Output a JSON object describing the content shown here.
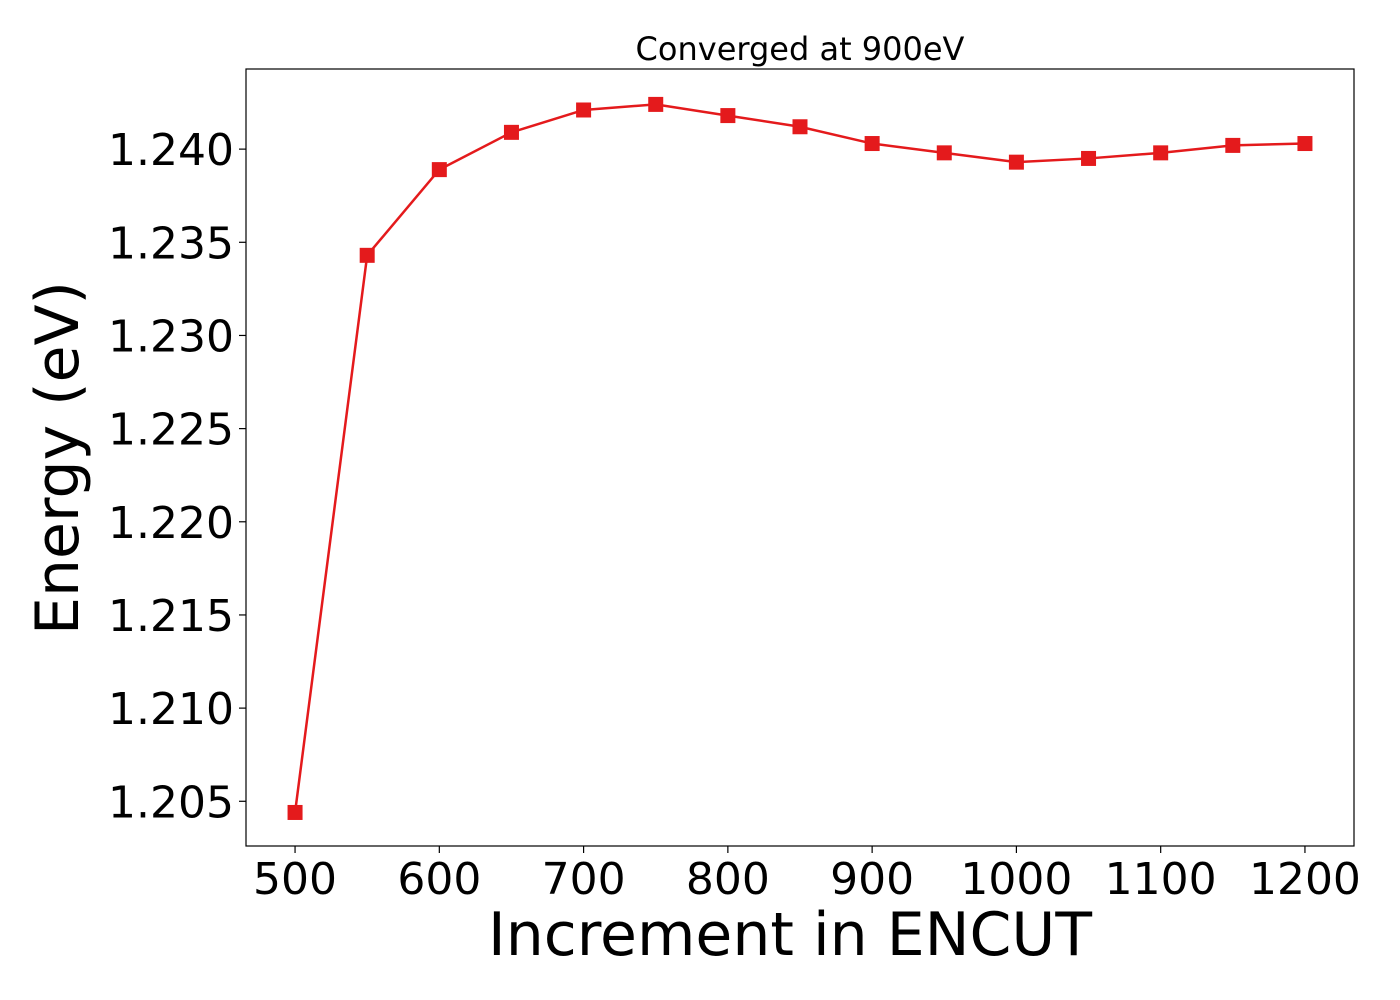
{
  "chart_data": {
    "type": "line",
    "title": "Converged at 900eV",
    "xlabel": "Increment in ENCUT",
    "ylabel": "Energy (eV)",
    "xlim": [
      466,
      1234
    ],
    "ylim": [
      1.2026,
      1.2443
    ],
    "x_ticks": [
      500,
      600,
      700,
      800,
      900,
      1000,
      1100,
      1200
    ],
    "y_ticks": [
      1.205,
      1.21,
      1.215,
      1.22,
      1.225,
      1.23,
      1.235,
      1.24
    ],
    "x_tick_labels": [
      "500",
      "600",
      "700",
      "800",
      "900",
      "1000",
      "1100",
      "1200"
    ],
    "y_tick_labels": [
      "1.205",
      "1.210",
      "1.215",
      "1.220",
      "1.225",
      "1.230",
      "1.235",
      "1.240"
    ],
    "grid": false,
    "legend": false,
    "series": [
      {
        "color": "#e41a1c",
        "marker": "square",
        "x": [
          500,
          550,
          600,
          650,
          700,
          750,
          800,
          850,
          900,
          950,
          1000,
          1050,
          1100,
          1150,
          1200
        ],
        "y": [
          1.2044,
          1.2343,
          1.2389,
          1.2409,
          1.2421,
          1.2424,
          1.2418,
          1.2412,
          1.2403,
          1.2398,
          1.2393,
          1.2395,
          1.2398,
          1.2402,
          1.2403
        ]
      }
    ]
  }
}
